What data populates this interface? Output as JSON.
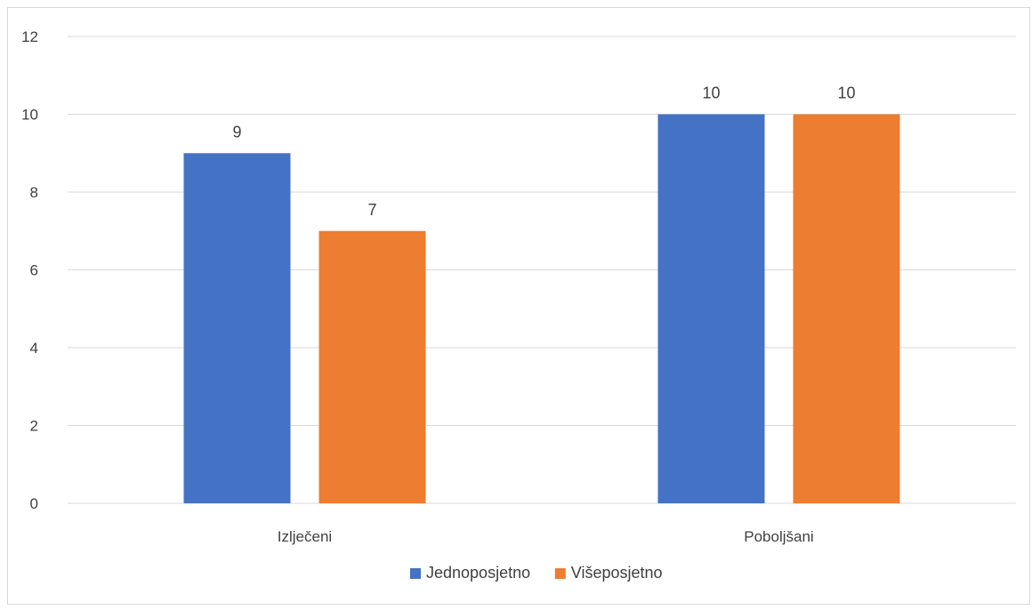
{
  "chart_data": {
    "type": "bar",
    "categories": [
      "Izlječeni",
      "Poboljšani"
    ],
    "series": [
      {
        "name": "Jednoposjetno",
        "color": "#4472C4",
        "values": [
          9,
          10
        ]
      },
      {
        "name": "Višeposjetno",
        "color": "#ED7D31",
        "values": [
          7,
          10
        ]
      }
    ],
    "ylim": [
      0,
      12
    ],
    "yticks": [
      0,
      2,
      4,
      6,
      8,
      10,
      12
    ],
    "grid": true,
    "data_labels": true,
    "legend_position": "bottom"
  }
}
